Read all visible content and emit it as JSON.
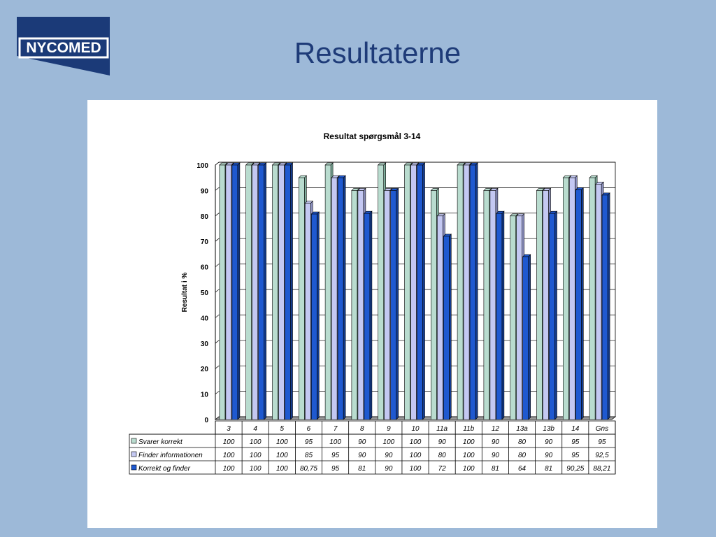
{
  "slide": {
    "title": "Resultaterne",
    "logo_text": "NYCOMED"
  },
  "colors": {
    "background": "#9db9d8",
    "title": "#1e3b78",
    "logo_bg": "#1b3a78",
    "series_1": "#b9dccf",
    "series_2": "#c4c8f2",
    "series_3": "#1f59d0"
  },
  "chart_data": {
    "type": "bar",
    "title": "Resultat spørgsmål 3-14",
    "ylabel": "Resultat i %",
    "xlabel": "",
    "ylim": [
      0,
      100
    ],
    "yticks": [
      0,
      10,
      20,
      30,
      40,
      50,
      60,
      70,
      80,
      90,
      100
    ],
    "grid": true,
    "legend": "data-table",
    "categories": [
      "3",
      "4",
      "5",
      "6",
      "7",
      "8",
      "9",
      "10",
      "11a",
      "11b",
      "12",
      "13a",
      "13b",
      "14",
      "Gns"
    ],
    "series": [
      {
        "name": "Svarer korrekt",
        "values": [
          100,
          100,
          100,
          95,
          100,
          90,
          100,
          100,
          90,
          100,
          90,
          80,
          90,
          95,
          95
        ],
        "labels": [
          "100",
          "100",
          "100",
          "95",
          "100",
          "90",
          "100",
          "100",
          "90",
          "100",
          "90",
          "80",
          "90",
          "95",
          "95"
        ]
      },
      {
        "name": "Finder informationen",
        "values": [
          100,
          100,
          100,
          85,
          95,
          90,
          90,
          100,
          80,
          100,
          90,
          80,
          90,
          95,
          92.5
        ],
        "labels": [
          "100",
          "100",
          "100",
          "85",
          "95",
          "90",
          "90",
          "100",
          "80",
          "100",
          "90",
          "80",
          "90",
          "95",
          "92,5"
        ]
      },
      {
        "name": "Korrekt og finder",
        "values": [
          100,
          100,
          100,
          80.75,
          95,
          81,
          90,
          100,
          72,
          100,
          81,
          64,
          81,
          90.25,
          88.21
        ],
        "labels": [
          "100",
          "100",
          "100",
          "80,75",
          "95",
          "81",
          "90",
          "100",
          "72",
          "100",
          "81",
          "64",
          "81",
          "90,25",
          "88,21"
        ]
      }
    ]
  }
}
